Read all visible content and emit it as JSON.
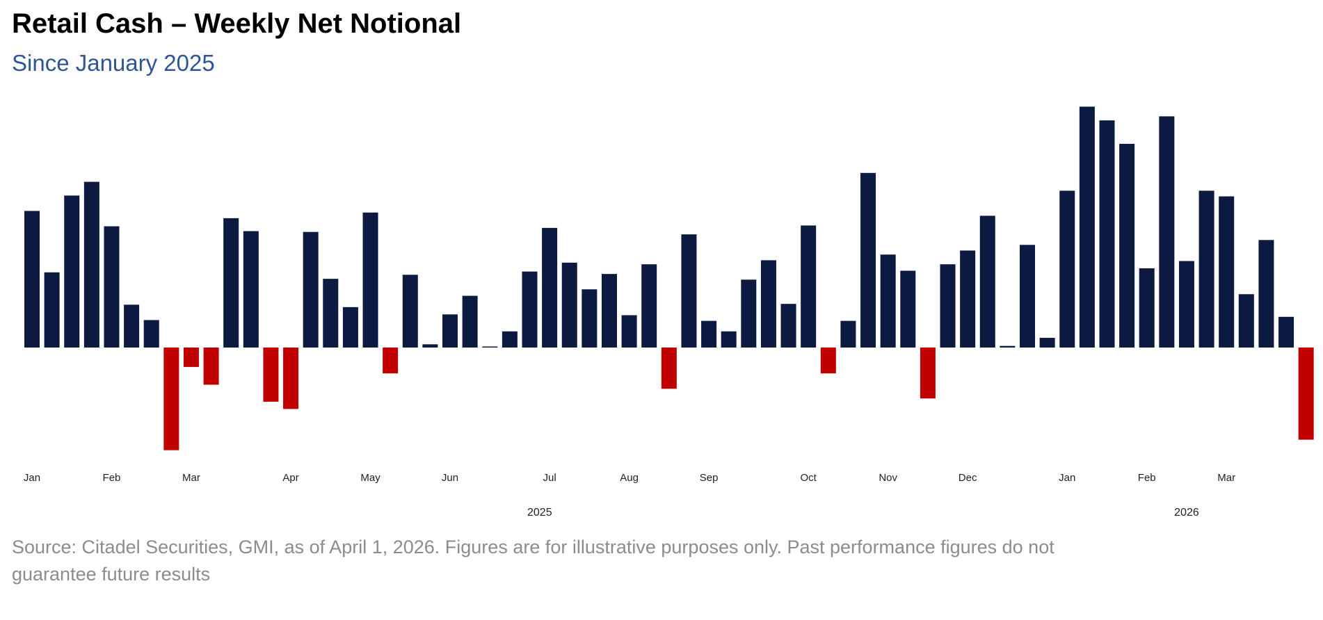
{
  "chart_data": {
    "type": "bar",
    "title": "Retail Cash – Weekly Net Notional",
    "subtitle": "Since January 2025",
    "xlabel": "",
    "ylabel": "",
    "y_axis_shown": false,
    "grid": false,
    "legend": "none",
    "colors": {
      "positive": "#0c1940",
      "negative": "#c00000"
    },
    "month_labels": [
      {
        "label": "Jan",
        "bar_index": 0
      },
      {
        "label": "Feb",
        "bar_index": 4
      },
      {
        "label": "Mar",
        "bar_index": 8
      },
      {
        "label": "Apr",
        "bar_index": 13
      },
      {
        "label": "May",
        "bar_index": 17
      },
      {
        "label": "Jun",
        "bar_index": 21
      },
      {
        "label": "Jul",
        "bar_index": 26
      },
      {
        "label": "Aug",
        "bar_index": 30
      },
      {
        "label": "Sep",
        "bar_index": 34
      },
      {
        "label": "Oct",
        "bar_index": 39
      },
      {
        "label": "Nov",
        "bar_index": 43
      },
      {
        "label": "Dec",
        "bar_index": 47
      },
      {
        "label": "Jan",
        "bar_index": 52
      },
      {
        "label": "Feb",
        "bar_index": 56
      },
      {
        "label": "Mar",
        "bar_index": 60
      }
    ],
    "year_labels": [
      {
        "label": "2025",
        "bar_index": 25.5
      },
      {
        "label": "2026",
        "bar_index": 58
      }
    ],
    "values": [
      169,
      93,
      188,
      205,
      150,
      53,
      34,
      -127,
      -24,
      -46,
      160,
      144,
      -67,
      -76,
      143,
      85,
      50,
      167,
      -32,
      90,
      4,
      41,
      64,
      0.5,
      20,
      94,
      148,
      105,
      72,
      91,
      40,
      103,
      -51,
      140,
      33,
      20,
      84,
      108,
      54,
      151,
      -32,
      33,
      216,
      115,
      95,
      -63,
      103,
      120,
      163,
      2,
      127,
      12,
      194,
      298,
      281,
      252,
      98,
      286,
      107,
      194,
      187,
      66,
      133,
      38,
      -114
    ]
  },
  "footer": {
    "source_line1": "Source: Citadel Securities, GMI, as of April 1, 2026. Figures are for illustrative purposes only. Past performance figures do not",
    "source_line2": "guarantee future results"
  }
}
